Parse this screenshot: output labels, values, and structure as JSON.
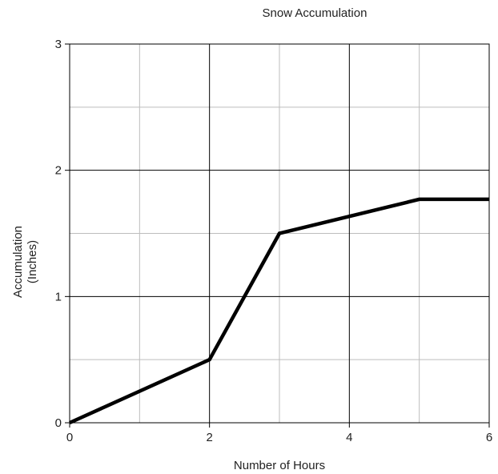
{
  "chart_data": {
    "type": "line",
    "title": "Snow Accumulation",
    "xlabel": "Number of Hours",
    "ylabel_lines": [
      "Accumulation",
      "(Inches)"
    ],
    "xlim": [
      0,
      6
    ],
    "ylim": [
      0,
      3
    ],
    "x_ticks": [
      0,
      2,
      4,
      6
    ],
    "y_ticks": [
      0,
      1,
      2,
      3
    ],
    "grid": true,
    "line_color": "#000000",
    "series": [
      {
        "x": [
          0,
          2,
          3,
          5,
          6
        ],
        "y": [
          0,
          0.5,
          1.5,
          1.77,
          1.77
        ]
      }
    ]
  }
}
